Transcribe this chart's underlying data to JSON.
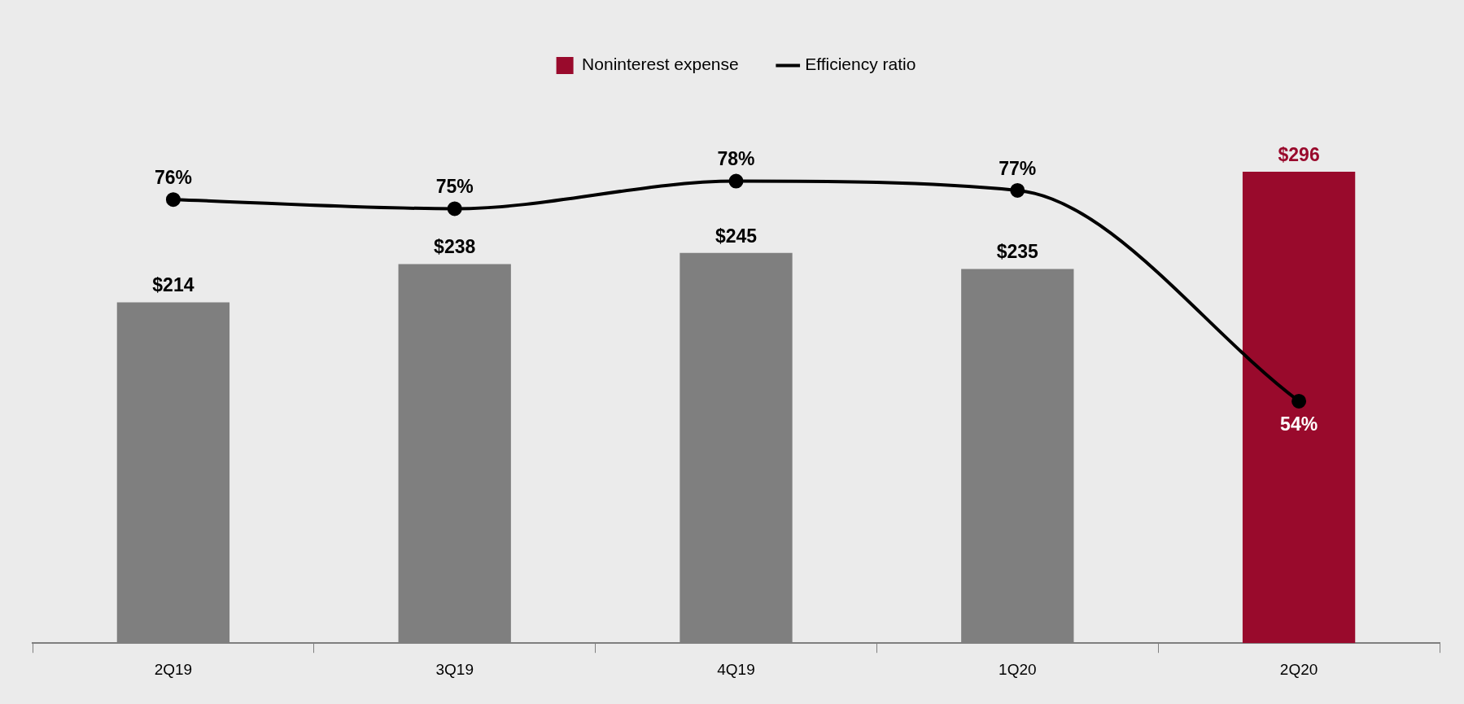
{
  "chart_data": {
    "type": "bar",
    "categories": [
      "2Q19",
      "3Q19",
      "4Q19",
      "1Q20",
      "2Q20"
    ],
    "series": [
      {
        "name": "Noninterest expense",
        "color": "#990a2c",
        "colors": [
          "#7f7f7f",
          "#7f7f7f",
          "#7f7f7f",
          "#7f7f7f",
          "#990a2c"
        ],
        "values": [
          214,
          238,
          245,
          235,
          296
        ],
        "value_labels": [
          "$214",
          "$238",
          "$245",
          "$235",
          "$296"
        ]
      },
      {
        "name": "Efficiency ratio",
        "type": "line",
        "axis": "y2",
        "color": "#000000",
        "values": [
          76,
          75,
          78,
          77,
          54
        ],
        "value_labels": [
          "76%",
          "75%",
          "78%",
          "77%",
          "54%"
        ]
      }
    ],
    "legend": "top",
    "marker": "circle",
    "line_style": "solid",
    "grid": false,
    "tick_labels": "x"
  }
}
